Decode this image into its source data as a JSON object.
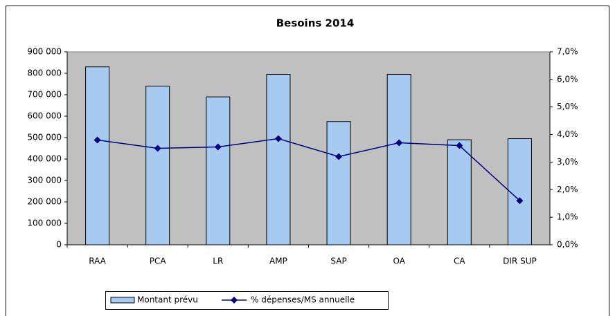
{
  "chart_data": {
    "type": "bar_line",
    "title": "Besoins 2014",
    "categories": [
      "RAA",
      "PCA",
      "LR",
      "AMP",
      "SAP",
      "OA",
      "CA",
      "DIR SUP"
    ],
    "series": [
      {
        "name": "Montant prévu",
        "type": "bar",
        "color": "#a6caf0",
        "values": [
          830000,
          740000,
          690000,
          795000,
          575000,
          795000,
          490000,
          495000
        ]
      },
      {
        "name": "% dépenses/MS annuelle",
        "type": "line",
        "axis": "y2",
        "color": "#000080",
        "values": [
          3.8,
          3.5,
          3.55,
          3.85,
          3.2,
          3.7,
          3.6,
          1.6
        ]
      }
    ],
    "ylim": [
      0,
      900000
    ],
    "yticks": [
      0,
      {
        "value": 100000,
        "label": "100 000"
      },
      {
        "value": 200000,
        "label": "200 000"
      },
      {
        "value": 300000,
        "label": "300 000"
      },
      {
        "value": 400000,
        "label": "400 000"
      },
      {
        "value": 500000,
        "label": "500 000"
      },
      {
        "value": 600000,
        "label": "600 000"
      },
      {
        "value": 700000,
        "label": "700 000"
      },
      {
        "value": 800000,
        "label": "800 000"
      },
      {
        "value": 900000,
        "label": "900 000"
      }
    ],
    "y2lim": [
      0,
      7
    ],
    "y2ticks": [
      {
        "value": 0,
        "label": "0,0%"
      },
      {
        "value": 1,
        "label": "1,0%"
      },
      {
        "value": 2,
        "label": "2,0%"
      },
      {
        "value": 3,
        "label": "3,0%"
      },
      {
        "value": 4,
        "label": "4,0%"
      },
      {
        "value": 5,
        "label": "5,0%"
      },
      {
        "value": 6,
        "label": "6,0%"
      },
      {
        "value": 7,
        "label": "7,0%"
      }
    ],
    "plot_background": "#c0c0c0",
    "legend": "bottom"
  }
}
